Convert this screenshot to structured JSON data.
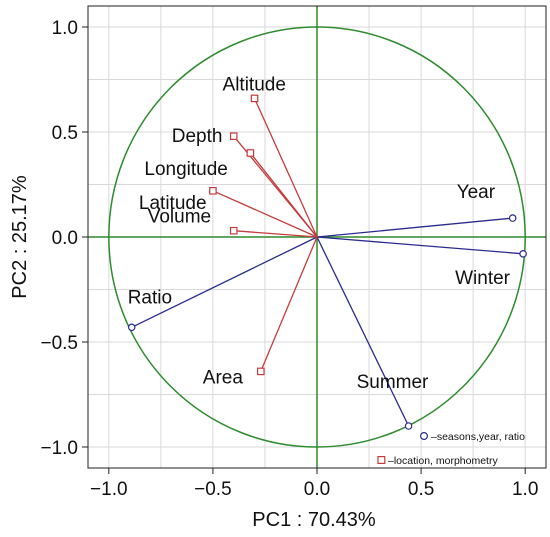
{
  "chart_data": {
    "type": "scatter",
    "subtype": "pca-loadings-biplot",
    "title": "",
    "xlabel": "PC1 : 70.43%",
    "ylabel": "PC2 : 25.17%",
    "xlim": [
      -1.1,
      1.1
    ],
    "ylim": [
      -1.1,
      1.1
    ],
    "x_ticks": [
      -1.0,
      -0.5,
      0.0,
      0.5,
      1.0
    ],
    "y_ticks": [
      -1.0,
      -0.5,
      0.0,
      0.5,
      1.0
    ],
    "x_tick_labels": [
      "−1.0",
      "−0.5",
      "0.0",
      "0.5",
      "1.0"
    ],
    "y_tick_labels": [
      "−1.0",
      "−0.5",
      "0.0",
      "0.5",
      "1.0"
    ],
    "grid": true,
    "unit_circle": true,
    "legend_position": "bottom-right",
    "colors": {
      "circle": "#2e8b2e",
      "axes_zero": "#2e8b2e",
      "grid": "#d9d9d9",
      "series_1": "#2b2b8f",
      "series_2": "#c43c3c"
    },
    "series": [
      {
        "name": "seasons,year, ratio",
        "legend_prefix": "–",
        "marker": "circle",
        "color": "#2b2b8f",
        "points": [
          {
            "label": "Year",
            "x": 0.94,
            "y": 0.09
          },
          {
            "label": "Winter",
            "x": 0.99,
            "y": -0.08
          },
          {
            "label": "Summer",
            "x": 0.44,
            "y": -0.9
          },
          {
            "label": "Ratio",
            "x": -0.89,
            "y": -0.43
          }
        ]
      },
      {
        "name": "location, morphometry",
        "legend_prefix": "–",
        "marker": "square",
        "color": "#c43c3c",
        "points": [
          {
            "label": "Altitude",
            "x": -0.3,
            "y": 0.66
          },
          {
            "label": "Depth",
            "x": -0.4,
            "y": 0.48
          },
          {
            "label": "Longitude",
            "x": -0.32,
            "y": 0.4
          },
          {
            "label": "Latitude",
            "x": -0.5,
            "y": 0.22
          },
          {
            "label": "Volume",
            "x": -0.4,
            "y": 0.03
          },
          {
            "label": "Area",
            "x": -0.27,
            "y": -0.64
          }
        ]
      }
    ]
  }
}
